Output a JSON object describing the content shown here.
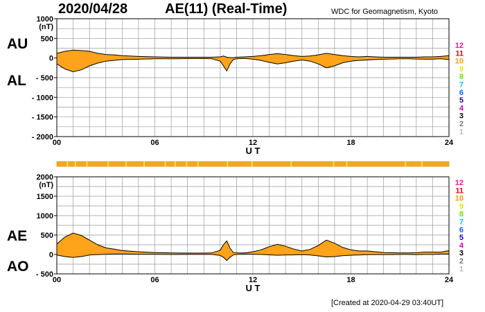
{
  "header": {
    "date": "2020/04/28",
    "title": "AE(11) (Real-Time)",
    "source": "WDC for Geomagnetism, Kyoto"
  },
  "footer": {
    "created": "[Created at 2020-04-29 03:40UT]"
  },
  "colors": {
    "fill": "#ffa31a",
    "outline": "#000000",
    "grid": "#999999",
    "bar_main": "#f5a623",
    "bar_gap": "#f2e24a"
  },
  "station_legend": [
    {
      "label": "12",
      "color": "#ff1493"
    },
    {
      "label": "11",
      "color": "#e8001a"
    },
    {
      "label": "10",
      "color": "#ff9900"
    },
    {
      "label": "9",
      "color": "#e6e600"
    },
    {
      "label": "8",
      "color": "#66e600"
    },
    {
      "label": "7",
      "color": "#00c8ff"
    },
    {
      "label": "6",
      "color": "#0066ff"
    },
    {
      "label": "5",
      "color": "#1a00cc"
    },
    {
      "label": "4",
      "color": "#cc00cc"
    },
    {
      "label": "3",
      "color": "#000000"
    },
    {
      "label": "2",
      "color": "#777777"
    },
    {
      "label": "1",
      "color": "#bbbbbb"
    }
  ],
  "chart_data": [
    {
      "type": "area",
      "name": "AU/AL",
      "upper_label": "AU",
      "lower_label": "AL",
      "unit": "(nT)",
      "xlabel": "U T",
      "xlim": [
        0,
        24
      ],
      "ylim": [
        -2000,
        1000
      ],
      "x_ticks": [
        "00",
        "06",
        "12",
        "18",
        "24"
      ],
      "y_ticks": [
        "1000",
        "500",
        "0",
        "- 500",
        "- 1000",
        "- 1500",
        "- 2000"
      ],
      "y_tick_values": [
        1000,
        500,
        0,
        -500,
        -1000,
        -1500,
        -2000
      ],
      "x": [
        0,
        0.5,
        1,
        1.5,
        2,
        2.5,
        3,
        3.5,
        4,
        5,
        6,
        7,
        8,
        9,
        9.5,
        10,
        10.2,
        10.4,
        10.6,
        10.8,
        11,
        11.5,
        12,
        12.5,
        13,
        13.5,
        14,
        14.5,
        15,
        15.5,
        16,
        16.5,
        17,
        17.5,
        18,
        18.5,
        19,
        19.5,
        20,
        20.5,
        21,
        21.5,
        22,
        22.5,
        23,
        23.5,
        24
      ],
      "series": [
        {
          "name": "AU",
          "values": [
            120,
            170,
            200,
            190,
            170,
            120,
            90,
            80,
            60,
            40,
            30,
            20,
            20,
            20,
            20,
            30,
            50,
            20,
            10,
            10,
            20,
            30,
            40,
            60,
            90,
            110,
            90,
            60,
            40,
            50,
            80,
            120,
            90,
            60,
            40,
            30,
            40,
            30,
            20,
            20,
            20,
            20,
            20,
            30,
            30,
            40,
            60
          ]
        },
        {
          "name": "AL",
          "values": [
            -150,
            -280,
            -350,
            -300,
            -200,
            -130,
            -80,
            -60,
            -40,
            -30,
            -20,
            -20,
            -15,
            -15,
            -20,
            -80,
            -200,
            -330,
            -150,
            -40,
            -20,
            -10,
            -30,
            -60,
            -110,
            -150,
            -120,
            -80,
            -50,
            -80,
            -150,
            -250,
            -200,
            -120,
            -80,
            -60,
            -50,
            -40,
            -30,
            -25,
            -20,
            -20,
            -25,
            -30,
            -30,
            -20,
            -40
          ]
        }
      ]
    },
    {
      "type": "area",
      "name": "AE/AO",
      "upper_label": "AE",
      "lower_label": "AO",
      "unit": "(nT)",
      "xlabel": "U T",
      "xlim": [
        0,
        24
      ],
      "ylim": [
        -500,
        2000
      ],
      "x_ticks": [
        "00",
        "06",
        "12",
        "18",
        "24"
      ],
      "y_ticks": [
        "2000",
        "1500",
        "1000",
        "500",
        "0",
        "- 500"
      ],
      "y_tick_values": [
        2000,
        1500,
        1000,
        500,
        0,
        -500
      ],
      "x": [
        0,
        0.5,
        1,
        1.5,
        2,
        2.5,
        3,
        3.5,
        4,
        5,
        6,
        7,
        8,
        9,
        9.5,
        10,
        10.2,
        10.4,
        10.6,
        10.8,
        11,
        11.5,
        12,
        12.5,
        13,
        13.5,
        14,
        14.5,
        15,
        15.5,
        16,
        16.5,
        17,
        17.5,
        18,
        18.5,
        19,
        19.5,
        20,
        20.5,
        21,
        21.5,
        22,
        22.5,
        23,
        23.5,
        24
      ],
      "series": [
        {
          "name": "AE",
          "values": [
            270,
            450,
            550,
            490,
            370,
            250,
            170,
            140,
            100,
            70,
            50,
            40,
            35,
            35,
            40,
            110,
            250,
            350,
            160,
            50,
            40,
            40,
            70,
            120,
            200,
            260,
            210,
            140,
            90,
            130,
            230,
            370,
            290,
            180,
            120,
            90,
            90,
            70,
            50,
            45,
            40,
            40,
            45,
            60,
            60,
            60,
            100
          ]
        },
        {
          "name": "AO",
          "values": [
            -15,
            -55,
            -75,
            -55,
            -15,
            -5,
            5,
            10,
            10,
            5,
            5,
            0,
            2,
            2,
            0,
            -25,
            -75,
            -155,
            -70,
            -15,
            0,
            10,
            5,
            0,
            -10,
            -20,
            -15,
            -10,
            -5,
            -15,
            -35,
            -65,
            -55,
            -30,
            -20,
            -15,
            -5,
            -5,
            -5,
            -3,
            0,
            0,
            -3,
            0,
            0,
            10,
            10
          ]
        }
      ]
    }
  ]
}
